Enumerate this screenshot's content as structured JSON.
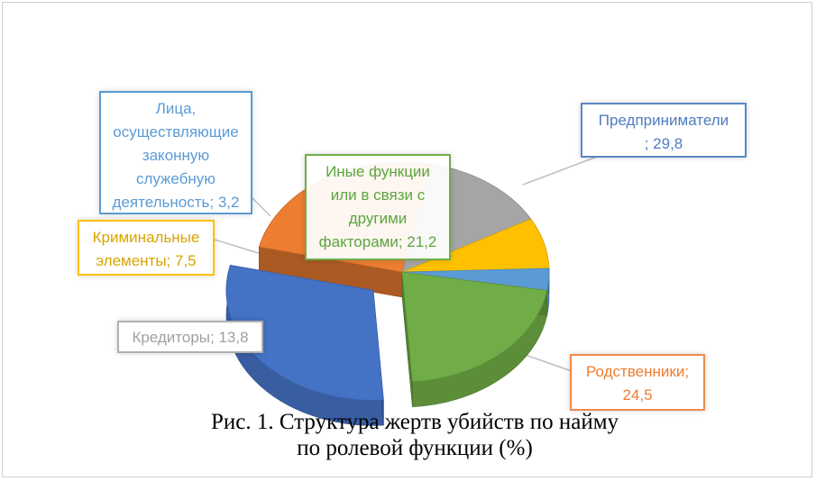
{
  "chart_data": {
    "type": "pie",
    "style": "3d-exploded",
    "title": "",
    "series": [
      {
        "categories": [
          "Предприниматели",
          "Родственники",
          "Кредиторы",
          "Криминальные элементы",
          "Лица, осуществляющие законную служебную деятельность",
          "Иные функции или в связи с другими факторами"
        ],
        "values": [
          29.8,
          24.5,
          13.8,
          7.5,
          3.2,
          21.2
        ],
        "colors": [
          "#4472c4",
          "#ed7d31",
          "#a5a5a5",
          "#ffc000",
          "#5b9bd5",
          "#70ad47"
        ]
      }
    ],
    "data_labels": [
      "Предприниматели; 29,8",
      "Родственники; 24,5",
      "Кредиторы; 13,8",
      "Криминальные элементы; 7,5",
      "Лица, осуществляющие законную служебную деятельность; 3,2",
      "Иные функции или в связи с другими факторами; 21,2"
    ],
    "exploded_slice": "Предприниматели"
  },
  "labels": {
    "l0_line1": "Предприниматели",
    "l0_line2": "; 29,8",
    "l1_line1": "Родственники;",
    "l1_line2": "24,5",
    "l2_line1": "Кредиторы; 13,8",
    "l3_line1": "Криминальные",
    "l3_line2": "элементы; 7,5",
    "l4_line1": "Лица,",
    "l4_line2": "осуществляющие",
    "l4_line3": "законную",
    "l4_line4": "служебную",
    "l4_line5": "деятельность; 3,2",
    "l5_line1": "Иные функции",
    "l5_line2": "или в связи с",
    "l5_line3": "другими",
    "l5_line4": "факторами; 21,2"
  },
  "caption": {
    "line1": "Рис. 1. Структура жертв убийств по найму",
    "line2": "по ролевой функции (%)"
  }
}
